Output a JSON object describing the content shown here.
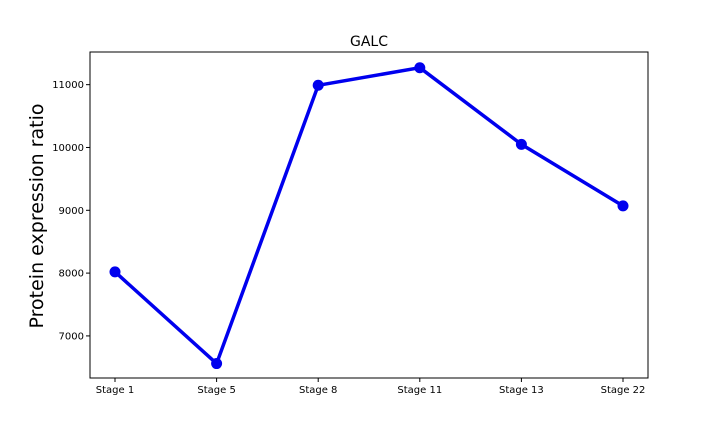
{
  "chart_data": {
    "type": "line",
    "title": "GALC",
    "xlabel": "",
    "ylabel": "Protein expression ratio",
    "categories": [
      "Stage 1",
      "Stage 5",
      "Stage 8",
      "Stage 11",
      "Stage 13",
      "Stage 22"
    ],
    "series": [
      {
        "values": [
          8020,
          6560,
          10990,
          11270,
          10050,
          9070
        ],
        "color": "#0000ee"
      }
    ],
    "yticks": [
      7000,
      8000,
      9000,
      10000,
      11000
    ],
    "ytick_labels": [
      "7000",
      "8000",
      "9000",
      "10000",
      "11000"
    ],
    "ylim": [
      6330,
      11520
    ],
    "grid": false,
    "legend": "none"
  }
}
